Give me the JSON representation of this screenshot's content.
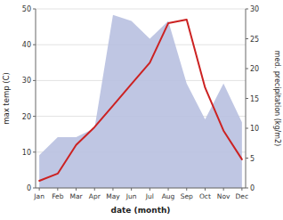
{
  "chart_data": {
    "type": "line",
    "categories": [
      "Jan",
      "Feb",
      "Mar",
      "Apr",
      "May",
      "Jun",
      "Jul",
      "Aug",
      "Sep",
      "Oct",
      "Nov",
      "Dec"
    ],
    "series": [
      {
        "type": "area",
        "axis": "y2",
        "color": "#b8c0e0",
        "values": [
          5.5,
          8.5,
          8.5,
          10,
          29,
          28,
          25,
          28,
          17.5,
          11.5,
          17.5,
          11
        ]
      },
      {
        "type": "line",
        "color": "#cc2222",
        "values": [
          2,
          4,
          12,
          17,
          23,
          29,
          35,
          46,
          47,
          28,
          16,
          8
        ]
      }
    ],
    "xlabel": "date (month)",
    "ylabel": "max temp (C)",
    "y2label": "med. precipitation (kg/m2)",
    "ylim": [
      0,
      50
    ],
    "yticks": [
      0,
      10,
      20,
      30,
      40,
      50
    ],
    "y2lim": [
      0,
      30
    ],
    "y2ticks": [
      0,
      5,
      10,
      15,
      20,
      25,
      30
    ],
    "grid": true
  }
}
